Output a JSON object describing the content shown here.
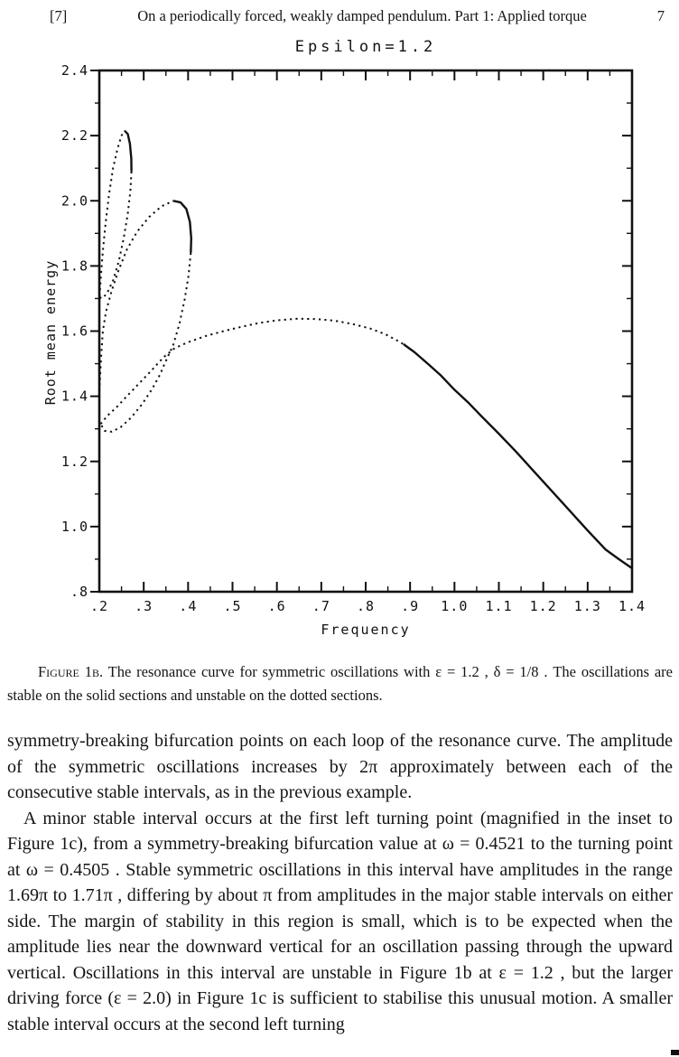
{
  "header": {
    "left_ref": "[7]",
    "running_title": "On a periodically forced, weakly damped pendulum. Part 1: Applied torque",
    "page_number": "7"
  },
  "caption": {
    "label": "Figure 1b.",
    "text": " The resonance curve for symmetric oscillations with ε = 1.2 , δ = 1/8 . The oscillations are stable on the solid sections and unstable on the dotted sections."
  },
  "body": {
    "paragraphs": [
      "symmetry-breaking bifurcation points on each loop of the resonance curve. The amplitude of the symmetric oscillations increases by 2π approximately between each of the consecutive stable intervals, as in the previous example.",
      "A minor stable interval occurs at the first left turning point (magnified in the inset to Figure 1c), from a symmetry-breaking bifurcation value at ω = 0.4521 to the turning point at ω = 0.4505 . Stable symmetric oscillations in this interval have amplitudes in the range 1.69π to 1.71π , differing by about π from amplitudes in the major stable intervals on either side. The margin of stability in this region is small, which is to be expected when the amplitude lies near the downward vertical for an oscillation passing through the upward vertical. Oscillations in this interval are unstable in Figure 1b at ε = 1.2 , but the larger driving force (ε = 2.0) in Figure 1c is sufficient to stabilise this unusual motion. A smaller stable interval occurs at the second left turning"
    ]
  },
  "chart_data": {
    "type": "line",
    "title": "Epsilon=1.2",
    "xlabel": "Frequency",
    "ylabel": "Root mean energy",
    "xlim": [
      0.2,
      1.4
    ],
    "ylim": [
      0.8,
      2.4
    ],
    "grid": false,
    "legend": "none",
    "x_ticks": [
      {
        "v": 0.2,
        "label": ".2"
      },
      {
        "v": 0.3,
        "label": ".3"
      },
      {
        "v": 0.4,
        "label": ".4"
      },
      {
        "v": 0.5,
        "label": ".5"
      },
      {
        "v": 0.6,
        "label": ".6"
      },
      {
        "v": 0.7,
        "label": ".7"
      },
      {
        "v": 0.8,
        "label": ".8"
      },
      {
        "v": 0.9,
        "label": ".9"
      },
      {
        "v": 1.0,
        "label": "1.0"
      },
      {
        "v": 1.1,
        "label": "1.1"
      },
      {
        "v": 1.2,
        "label": "1.2"
      },
      {
        "v": 1.3,
        "label": "1.3"
      },
      {
        "v": 1.4,
        "label": "1.4"
      }
    ],
    "x_minor_step": 0.05,
    "y_ticks": [
      {
        "v": 0.8,
        "label": ".8"
      },
      {
        "v": 1.0,
        "label": "1.0"
      },
      {
        "v": 1.2,
        "label": "1.2"
      },
      {
        "v": 1.4,
        "label": "1.4"
      },
      {
        "v": 1.6,
        "label": "1.6"
      },
      {
        "v": 1.8,
        "label": "1.8"
      },
      {
        "v": 2.0,
        "label": "2.0"
      },
      {
        "v": 2.2,
        "label": "2.2"
      },
      {
        "v": 2.4,
        "label": "2.4"
      }
    ],
    "y_minor_step": 0.1,
    "line_color": "#111111",
    "stability_note": "solid = stable, dotted = unstable",
    "segments": [
      {
        "name": "loop1-left-unstable",
        "style": "dotted",
        "points": [
          [
            0.2,
            1.69
          ],
          [
            0.203,
            1.76
          ],
          [
            0.208,
            1.845
          ],
          [
            0.214,
            1.93
          ],
          [
            0.222,
            2.02
          ],
          [
            0.231,
            2.1
          ],
          [
            0.241,
            2.16
          ],
          [
            0.25,
            2.2
          ],
          [
            0.257,
            2.215
          ]
        ]
      },
      {
        "name": "loop1-top-right-stable",
        "style": "solid",
        "points": [
          [
            0.257,
            2.215
          ],
          [
            0.264,
            2.205
          ],
          [
            0.269,
            2.175
          ],
          [
            0.272,
            2.13
          ],
          [
            0.2725,
            2.09
          ]
        ]
      },
      {
        "name": "loop1-right-unstable",
        "style": "dotted",
        "points": [
          [
            0.2725,
            2.09
          ],
          [
            0.27,
            2.03
          ],
          [
            0.264,
            1.96
          ],
          [
            0.255,
            1.885
          ],
          [
            0.244,
            1.815
          ],
          [
            0.231,
            1.755
          ],
          [
            0.217,
            1.715
          ],
          [
            0.206,
            1.7
          ],
          [
            0.2,
            1.705
          ]
        ]
      },
      {
        "name": "loop2-left-unstable",
        "style": "dotted",
        "points": [
          [
            0.2,
            1.415
          ],
          [
            0.204,
            1.52
          ],
          [
            0.208,
            1.6
          ],
          [
            0.215,
            1.66
          ],
          [
            0.227,
            1.72
          ],
          [
            0.243,
            1.785
          ],
          [
            0.262,
            1.85
          ],
          [
            0.285,
            1.905
          ],
          [
            0.312,
            1.95
          ],
          [
            0.34,
            1.983
          ],
          [
            0.367,
            2.0
          ]
        ]
      },
      {
        "name": "loop2-top-right-stable",
        "style": "solid",
        "points": [
          [
            0.367,
            2.0
          ],
          [
            0.383,
            1.995
          ],
          [
            0.396,
            1.975
          ],
          [
            0.404,
            1.935
          ],
          [
            0.407,
            1.885
          ],
          [
            0.406,
            1.84
          ]
        ]
      },
      {
        "name": "loop2-right-unstable",
        "style": "dotted",
        "points": [
          [
            0.406,
            1.84
          ],
          [
            0.401,
            1.77
          ],
          [
            0.392,
            1.695
          ],
          [
            0.38,
            1.62
          ],
          [
            0.366,
            1.555
          ],
          [
            0.352,
            1.515
          ],
          [
            0.336,
            1.465
          ],
          [
            0.318,
            1.42
          ],
          [
            0.296,
            1.375
          ],
          [
            0.272,
            1.335
          ],
          [
            0.248,
            1.305
          ],
          [
            0.228,
            1.291
          ],
          [
            0.212,
            1.294
          ],
          [
            0.203,
            1.315
          ]
        ]
      },
      {
        "name": "main-branch-unstable",
        "style": "dotted",
        "points": [
          [
            0.203,
            1.315
          ],
          [
            0.218,
            1.34
          ],
          [
            0.238,
            1.365
          ],
          [
            0.262,
            1.4
          ],
          [
            0.29,
            1.44
          ],
          [
            0.318,
            1.48
          ],
          [
            0.345,
            1.52
          ],
          [
            0.37,
            1.548
          ],
          [
            0.4,
            1.566
          ],
          [
            0.44,
            1.585
          ],
          [
            0.48,
            1.6
          ],
          [
            0.52,
            1.613
          ],
          [
            0.56,
            1.625
          ],
          [
            0.6,
            1.633
          ],
          [
            0.645,
            1.638
          ],
          [
            0.69,
            1.637
          ],
          [
            0.73,
            1.632
          ],
          [
            0.77,
            1.622
          ],
          [
            0.81,
            1.608
          ],
          [
            0.845,
            1.59
          ],
          [
            0.875,
            1.568
          ],
          [
            0.885,
            1.56
          ]
        ]
      },
      {
        "name": "main-branch-stable",
        "style": "solid",
        "points": [
          [
            0.885,
            1.56
          ],
          [
            0.91,
            1.535
          ],
          [
            0.94,
            1.5
          ],
          [
            0.97,
            1.463
          ],
          [
            1.0,
            1.42
          ],
          [
            1.03,
            1.382
          ],
          [
            1.06,
            1.34
          ],
          [
            1.1,
            1.285
          ],
          [
            1.14,
            1.228
          ],
          [
            1.18,
            1.168
          ],
          [
            1.22,
            1.108
          ],
          [
            1.26,
            1.048
          ],
          [
            1.3,
            0.988
          ],
          [
            1.34,
            0.93
          ],
          [
            1.37,
            0.9
          ],
          [
            1.4,
            0.872
          ]
        ]
      }
    ]
  }
}
